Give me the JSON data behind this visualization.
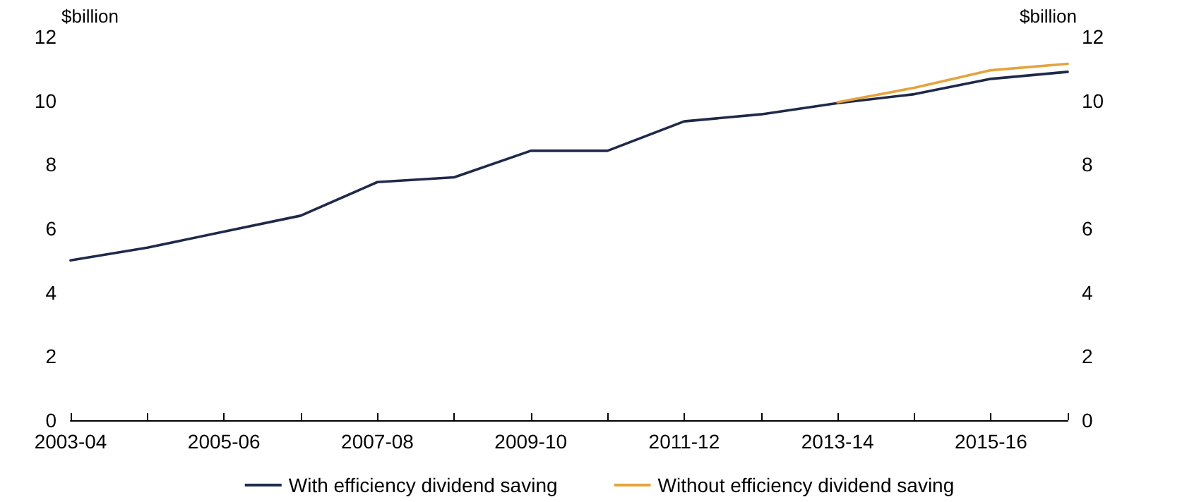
{
  "chart_data": {
    "type": "line",
    "ylabel": "$billion",
    "y2label": "$billion",
    "categories": [
      "2003-04",
      null,
      "2005-06",
      null,
      "2007-08",
      null,
      "2009-10",
      null,
      "2011-12",
      null,
      "2013-14",
      null,
      "2015-16",
      null
    ],
    "series": [
      {
        "name": "With efficiency dividend saving",
        "color": "#1f2a4a",
        "values": [
          5.0,
          5.4,
          5.9,
          6.4,
          7.45,
          7.6,
          8.43,
          8.43,
          9.35,
          9.57,
          9.92,
          10.2,
          10.68,
          10.9
        ]
      },
      {
        "name": "Without efficiency dividend saving",
        "color": "#e5a33d",
        "values": [
          null,
          null,
          null,
          null,
          null,
          null,
          null,
          null,
          null,
          null,
          9.95,
          10.4,
          10.95,
          11.15
        ]
      }
    ],
    "ylim": [
      0,
      12
    ],
    "yticks": [
      0,
      2,
      4,
      6,
      8,
      10,
      12
    ],
    "y2lim": [
      0,
      12
    ],
    "y2ticks": [
      0,
      2,
      4,
      6,
      8,
      10,
      12
    ],
    "grid": false,
    "legend": "bottom",
    "marker": "none",
    "line_style": "solid"
  }
}
